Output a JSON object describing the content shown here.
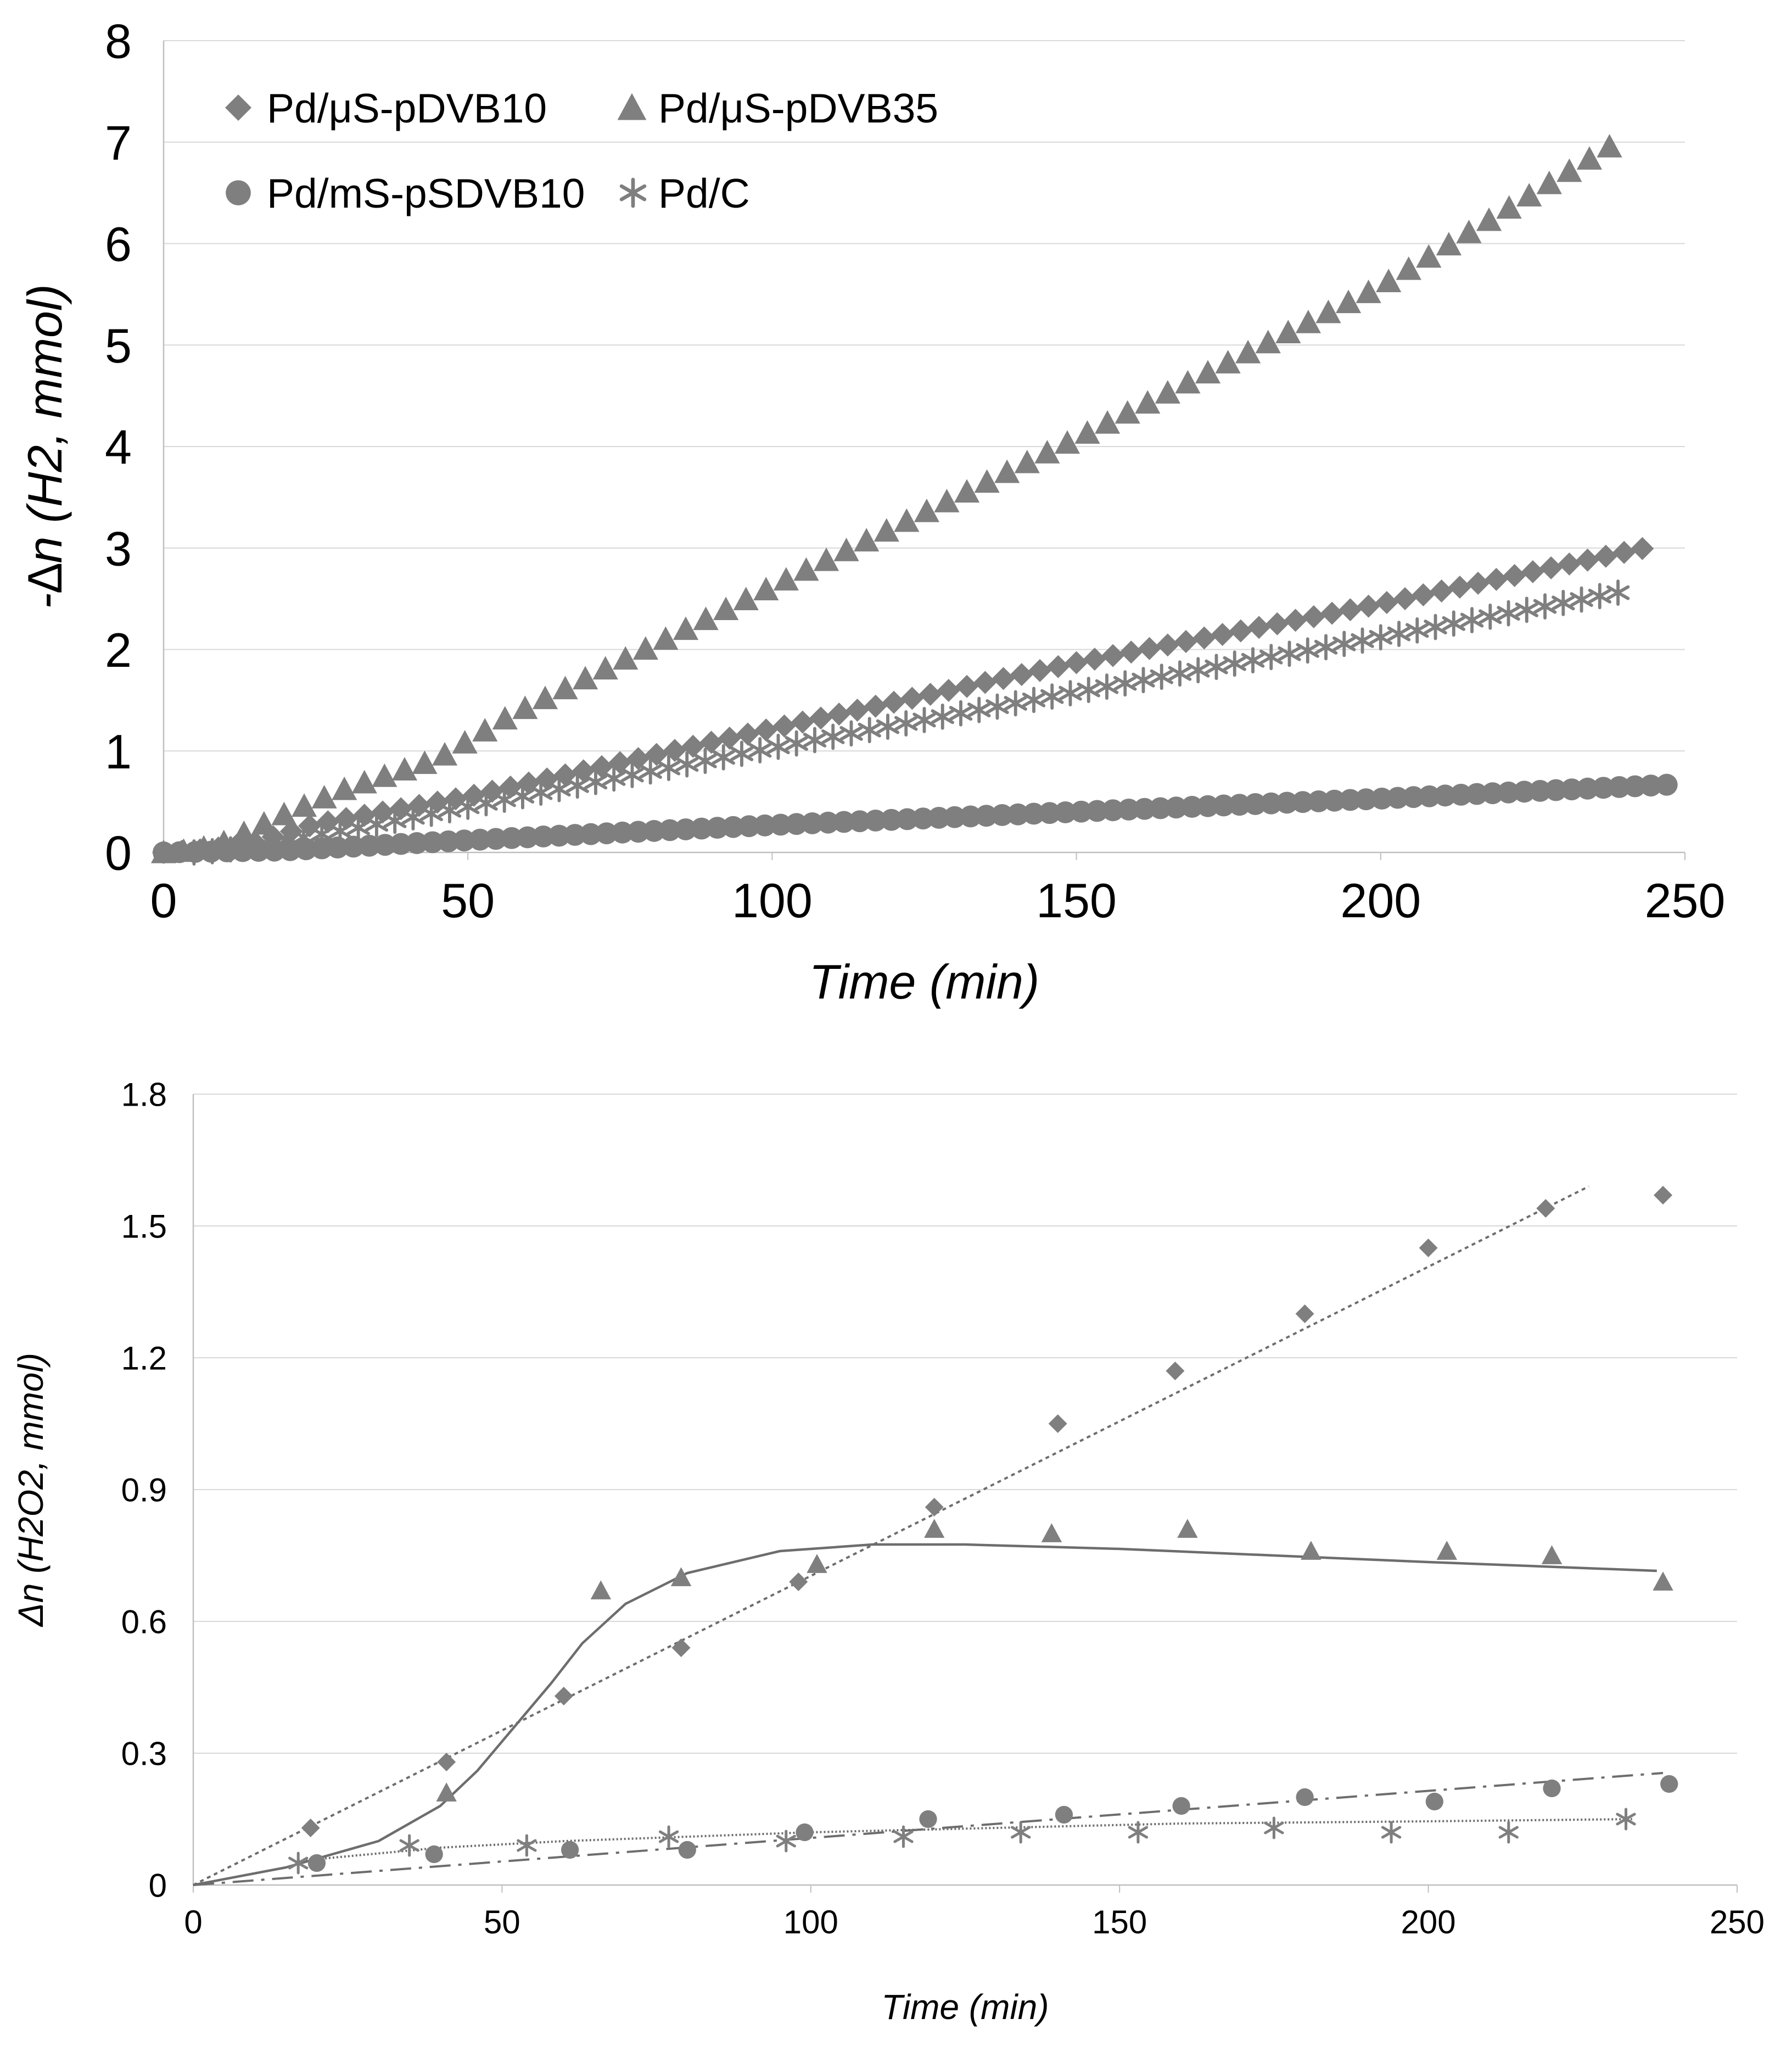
{
  "colors": {
    "marker": "#7f7f7f",
    "line": "#6d6d6d",
    "grid": "#d9d9d9",
    "axis": "#bfbfbf",
    "text": "#000000"
  },
  "chart_data": [
    {
      "type": "scatter",
      "title": "",
      "xlabel": "Time (min)",
      "ylabel": "-∆n (H2, mmol)",
      "xlim": [
        0,
        250
      ],
      "ylim": [
        0,
        8
      ],
      "xticks": [
        "0",
        "50",
        "100",
        "150",
        "200",
        "250"
      ],
      "yticks": [
        "0",
        "1",
        "2",
        "3",
        "4",
        "5",
        "6",
        "7",
        "8"
      ],
      "grid": true,
      "legend_position": "top-left",
      "series": [
        {
          "name": "Pd/μS-pDVB10",
          "marker": "diamond",
          "x_start": 0,
          "x_end": 245,
          "x_step": 3,
          "points": [
            [
              0,
              0
            ],
            [
              5,
              0.02
            ],
            [
              10,
              0.05
            ],
            [
              15,
              0.1
            ],
            [
              25,
              0.28
            ],
            [
              50,
              0.55
            ],
            [
              100,
              1.22
            ],
            [
              150,
              1.87
            ],
            [
              200,
              2.45
            ],
            [
              245,
              3.02
            ]
          ]
        },
        {
          "name": "Pd/μS-pDVB35",
          "marker": "triangle",
          "x_start": 0,
          "x_end": 238,
          "x_step": 3.3,
          "points": [
            [
              0,
              0
            ],
            [
              5,
              0.02
            ],
            [
              10,
              0.1
            ],
            [
              20,
              0.38
            ],
            [
              30,
              0.63
            ],
            [
              45,
              0.92
            ],
            [
              57,
              1.35
            ],
            [
              100,
              2.62
            ],
            [
              150,
              4.08
            ],
            [
              200,
              5.58
            ],
            [
              238,
              6.97
            ]
          ]
        },
        {
          "name": "Pd/mS-pSDVB10",
          "marker": "circle",
          "x_start": 0,
          "x_end": 248,
          "x_step": 2.6,
          "points": [
            [
              0,
              0
            ],
            [
              20,
              0.02
            ],
            [
              50,
              0.12
            ],
            [
              100,
              0.27
            ],
            [
              150,
              0.4
            ],
            [
              200,
              0.53
            ],
            [
              248,
              0.67
            ]
          ]
        },
        {
          "name": "Pd/C",
          "marker": "asterisk",
          "x_start": 5,
          "x_end": 239,
          "x_step": 3,
          "points": [
            [
              5,
              0
            ],
            [
              10,
              0.02
            ],
            [
              20,
              0.12
            ],
            [
              30,
              0.22
            ],
            [
              50,
              0.45
            ],
            [
              100,
              1.03
            ],
            [
              150,
              1.58
            ],
            [
              200,
              2.12
            ],
            [
              239,
              2.56
            ]
          ]
        }
      ]
    },
    {
      "type": "scatter",
      "title": "",
      "xlabel": "Time (min)",
      "ylabel": "Δn (H2O2, mmol)",
      "xlim": [
        0,
        250
      ],
      "ylim": [
        0,
        1.8
      ],
      "xticks": [
        "0",
        "50",
        "100",
        "150",
        "200",
        "250"
      ],
      "yticks": [
        "0",
        "0.3",
        "0.6",
        "0.9",
        "1.2",
        "1.5",
        "1.8"
      ],
      "grid": true,
      "series": [
        {
          "name": "Pd/μS-pDVB10",
          "marker": "diamond",
          "x": [
            19,
            41,
            60,
            79,
            98,
            120,
            140,
            159,
            180,
            200,
            219,
            238
          ],
          "y": [
            0.13,
            0.28,
            0.43,
            0.54,
            0.69,
            0.86,
            1.05,
            1.17,
            1.3,
            1.45,
            1.54,
            1.57
          ],
          "trend": {
            "style": "dotted",
            "points": [
              [
                0,
                0
              ],
              [
                226,
                1.59
              ]
            ]
          }
        },
        {
          "name": "Pd/μS-pDVB35",
          "marker": "triangle",
          "x": [
            41,
            66,
            79,
            101,
            120,
            139,
            161,
            181,
            203,
            220,
            238
          ],
          "y": [
            0.21,
            0.67,
            0.7,
            0.73,
            0.81,
            0.8,
            0.81,
            0.76,
            0.76,
            0.75,
            0.69
          ],
          "trend": {
            "style": "solid",
            "points": [
              [
                0,
                0
              ],
              [
                15,
                0.04
              ],
              [
                30,
                0.1
              ],
              [
                40,
                0.18
              ],
              [
                46,
                0.26
              ],
              [
                52,
                0.36
              ],
              [
                58,
                0.46
              ],
              [
                63,
                0.55
              ],
              [
                70,
                0.64
              ],
              [
                80,
                0.71
              ],
              [
                95,
                0.76
              ],
              [
                110,
                0.775
              ],
              [
                125,
                0.775
              ],
              [
                150,
                0.765
              ],
              [
                175,
                0.75
              ],
              [
                200,
                0.735
              ],
              [
                237,
                0.715
              ]
            ]
          }
        },
        {
          "name": "Pd/mS-pSDVB10",
          "marker": "circle",
          "x": [
            20,
            39,
            61,
            80,
            99,
            119,
            141,
            160,
            180,
            201,
            220,
            239
          ],
          "y": [
            0.05,
            0.07,
            0.08,
            0.08,
            0.12,
            0.15,
            0.16,
            0.18,
            0.2,
            0.19,
            0.22,
            0.23
          ],
          "trend": {
            "style": "dash-dot",
            "points": [
              [
                0,
                0
              ],
              [
                238,
                0.255
              ]
            ]
          }
        },
        {
          "name": "Pd/C",
          "marker": "asterisk",
          "x": [
            17,
            35,
            54,
            77,
            96,
            115,
            134,
            153,
            175,
            194,
            213,
            232
          ],
          "y": [
            0.05,
            0.09,
            0.09,
            0.11,
            0.1,
            0.11,
            0.12,
            0.12,
            0.13,
            0.12,
            0.12,
            0.15
          ],
          "trend": {
            "style": "fine-dotted",
            "points": [
              [
                17,
                0.055
              ],
              [
                40,
                0.085
              ],
              [
                60,
                0.1
              ],
              [
                80,
                0.11
              ],
              [
                100,
                0.12
              ],
              [
                130,
                0.13
              ],
              [
                160,
                0.14
              ],
              [
                200,
                0.145
              ],
              [
                233,
                0.15
              ]
            ]
          }
        }
      ]
    }
  ]
}
